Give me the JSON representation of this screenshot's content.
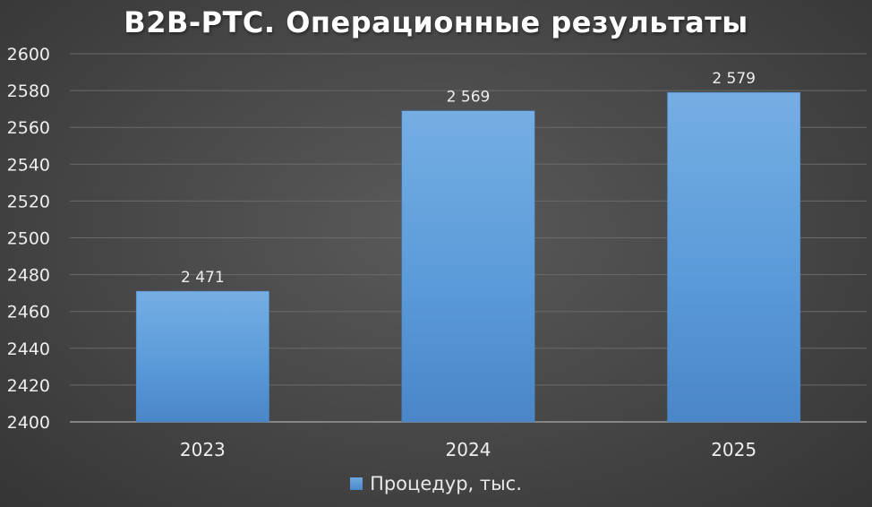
{
  "chart_data": {
    "type": "bar",
    "title": "B2B-РТС. Операционные результаты",
    "categories": [
      "2023",
      "2024",
      "2025"
    ],
    "series": [
      {
        "name": "Процедур, тыс.",
        "values": [
          2471,
          2569,
          2579
        ],
        "labels": [
          "2 471",
          "2 569",
          "2 579"
        ],
        "color": "#5b9bd5"
      }
    ],
    "ylim": [
      2400,
      2600
    ],
    "yticks": [
      "2400",
      "2420",
      "2440",
      "2460",
      "2480",
      "2500",
      "2520",
      "2540",
      "2560",
      "2580",
      "2600"
    ],
    "grid": true,
    "legend_position": "bottom"
  }
}
